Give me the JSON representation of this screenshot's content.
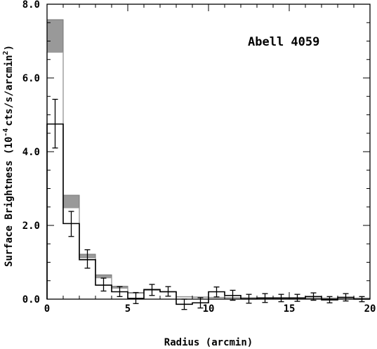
{
  "chart_data": {
    "type": "step",
    "title": "",
    "annotation": "Abell 4059",
    "xlabel": "Radius (arcmin)",
    "ylabel_main": "Surface Brightness (10",
    "ylabel_sup": "-4",
    "ylabel_unit": "cts/s/arcmin",
    "ylabel_unit_sup": "2",
    "ylabel_close": ")",
    "xlim": [
      0,
      20
    ],
    "ylim": [
      0,
      8
    ],
    "xticks": [
      0,
      5,
      10,
      15,
      20
    ],
    "xtick_labels": [
      "0",
      "5",
      "10",
      "15",
      "20"
    ],
    "yticks": [
      0,
      2,
      4,
      6,
      8
    ],
    "ytick_labels": [
      "0.0",
      "2.0",
      "4.0",
      "6.0",
      "8.0"
    ],
    "bin_width": 1,
    "bins_x_start": [
      0,
      1,
      2,
      3,
      4,
      5,
      6,
      7,
      8,
      9,
      10,
      11,
      12,
      13,
      14,
      15,
      16,
      17,
      18,
      19
    ],
    "series": [
      {
        "style": "black step with error bars",
        "values": [
          4.75,
          2.05,
          1.07,
          0.38,
          0.2,
          0.02,
          0.26,
          0.2,
          -0.14,
          -0.1,
          0.2,
          0.1,
          0.01,
          0.03,
          0.03,
          0.03,
          0.07,
          -0.02,
          0.05,
          0.0
        ],
        "err_low": [
          4.1,
          1.7,
          0.84,
          0.22,
          0.07,
          -0.12,
          0.1,
          0.08,
          -0.28,
          -0.24,
          0.06,
          -0.03,
          -0.11,
          -0.09,
          -0.07,
          -0.06,
          -0.03,
          -0.1,
          -0.05,
          -0.07
        ],
        "err_high": [
          5.42,
          2.38,
          1.34,
          0.57,
          0.34,
          0.18,
          0.4,
          0.34,
          0.0,
          0.04,
          0.33,
          0.24,
          0.13,
          0.15,
          0.13,
          0.13,
          0.17,
          0.07,
          0.15,
          0.07
        ]
      },
      {
        "style": "grey step",
        "values": [
          6.7,
          2.48,
          1.12,
          0.58,
          0.3,
          0.16,
          0.24,
          0.2,
          0.06,
          0.05,
          0.04,
          0.03,
          0.03,
          0.03,
          0.03,
          0.03,
          0.02,
          0.02,
          0.02,
          0.02
        ]
      },
      {
        "style": "grey band upper",
        "values": [
          7.58,
          2.82,
          1.22,
          0.66,
          0.35,
          0.18,
          0.26,
          0.21,
          0.07,
          0.06,
          0.05,
          0.04,
          0.04,
          0.04,
          0.04,
          0.04,
          0.03,
          0.03,
          0.03,
          0.03
        ]
      }
    ],
    "reference_line": {
      "y": 0,
      "style": "dotted"
    },
    "colors": {
      "band": "#999999",
      "model": "#999999",
      "data": "#000000"
    }
  }
}
